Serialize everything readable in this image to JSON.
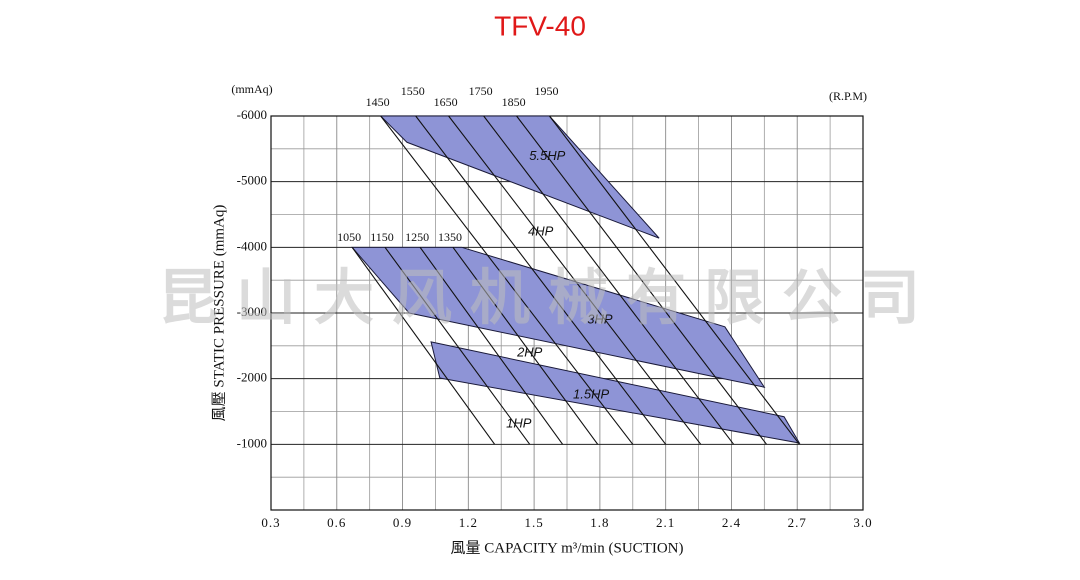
{
  "chart_data": {
    "type": "fan-curve",
    "title": "TFV-40",
    "y_unit": "(mmAq)",
    "rpm_unit": "(R.P.M)",
    "y_label": "風壓  STATIC  PRESSURE    (mmAq)",
    "x_label": "風量  CAPACITY  m³/min (SUCTION)",
    "watermark": "昆山大风机械有限公司",
    "xlim": [
      0.3,
      3.0
    ],
    "xticks": [
      0.3,
      0.6,
      0.9,
      1.2,
      1.5,
      1.8,
      2.1,
      2.4,
      2.7,
      {
        "value": 3.0,
        "label": "3.0"
      }
    ],
    "ylim": [
      0,
      -6000
    ],
    "yticks": [
      -1000,
      -2000,
      -3000,
      -4000,
      -5000,
      -6000
    ],
    "grid": true,
    "band_color": "#8e94d6",
    "bands": [
      {
        "name": "5.5HP",
        "x": [
          0.8,
          1.57,
          2.07,
          0.92
        ],
        "values": [
          -6000,
          -6000,
          -4140,
          -5600
        ]
      },
      {
        "name": "3HP",
        "x": [
          0.67,
          1.17,
          2.37,
          2.55,
          0.93
        ],
        "values": [
          -4000,
          -4000,
          -2790,
          -1870,
          -3000
        ]
      },
      {
        "name": "1.5HP",
        "x": [
          1.03,
          2.64,
          2.71,
          1.07
        ],
        "values": [
          -2560,
          -1420,
          -1020,
          -2010
        ]
      }
    ],
    "annotations": [
      {
        "text": "5.5HP",
        "x": 1.56,
        "y": -5380
      },
      {
        "text": "4HP",
        "x": 1.53,
        "y": -4230
      },
      {
        "text": "3HP",
        "x": 1.8,
        "y": -2890
      },
      {
        "text": "2HP",
        "x": 1.48,
        "y": -2390
      },
      {
        "text": "1.5HP",
        "x": 1.76,
        "y": -1750
      },
      {
        "text": "1HP",
        "x": 1.43,
        "y": -1310
      }
    ],
    "series": [
      {
        "name": "1050",
        "x": [
          0.67,
          1.32
        ],
        "values": [
          -4000,
          -1000
        ]
      },
      {
        "name": "1150",
        "x": [
          0.82,
          1.48
        ],
        "values": [
          -4000,
          -1000
        ]
      },
      {
        "name": "1250",
        "x": [
          0.98,
          1.63
        ],
        "values": [
          -4000,
          -1000
        ]
      },
      {
        "name": "1350",
        "x": [
          1.13,
          1.79
        ],
        "values": [
          -4000,
          -1000
        ]
      },
      {
        "name": "1450",
        "x": [
          0.8,
          1.95
        ],
        "values": [
          -6000,
          -1000
        ]
      },
      {
        "name": "1550",
        "x": [
          0.96,
          2.1
        ],
        "values": [
          -6000,
          -1000
        ]
      },
      {
        "name": "1650",
        "x": [
          1.11,
          2.26
        ],
        "values": [
          -6000,
          -1000
        ]
      },
      {
        "name": "1750",
        "x": [
          1.27,
          2.41
        ],
        "values": [
          -6000,
          -1000
        ]
      },
      {
        "name": "1850",
        "x": [
          1.42,
          2.56
        ],
        "values": [
          -6000,
          -1000
        ]
      },
      {
        "name": "1950",
        "x": [
          1.57,
          2.71
        ],
        "values": [
          -6000,
          -1000
        ]
      }
    ]
  }
}
